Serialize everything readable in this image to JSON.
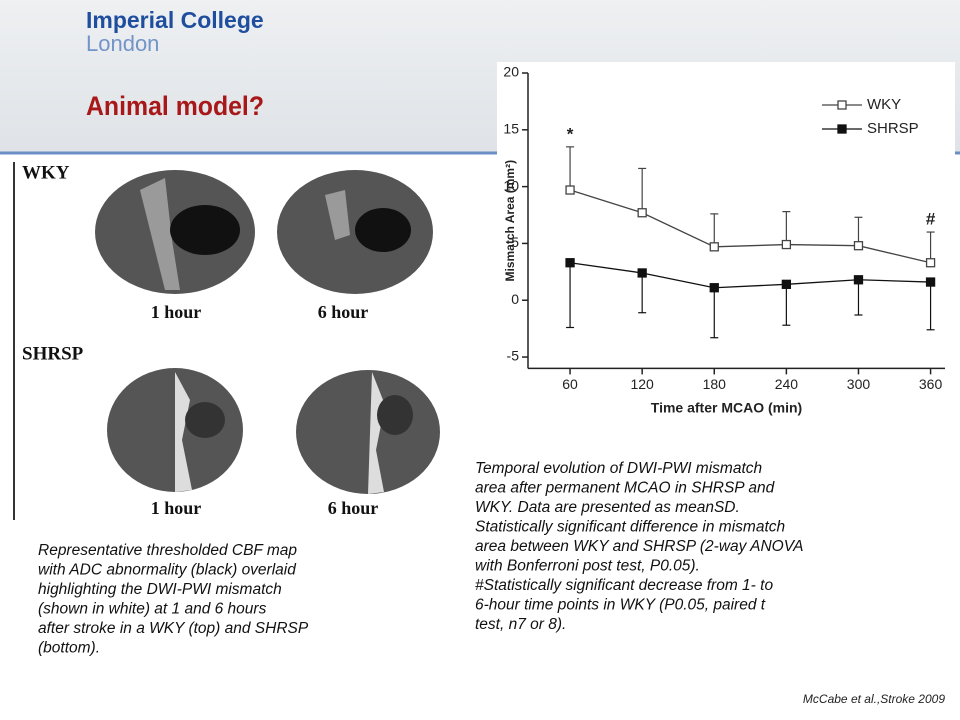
{
  "header": {
    "title": "Imperial College",
    "subtitle": "London",
    "heading": "Animal model?"
  },
  "figure": {
    "row_labels": [
      "WKY",
      "SHRSP"
    ],
    "time_labels": [
      "1 hour",
      "6 hour",
      "1 hour",
      "6 hour"
    ],
    "caption_lines": [
      "Representative thresholded CBF map",
      "with ADC abnormality (black) overlaid",
      "highlighting the DWI-PWI mismatch",
      "(shown in white) at 1 and 6 hours",
      "after stroke in a WKY (top) and SHRSP",
      "(bottom)."
    ]
  },
  "chart_caption_lines": [
    "Temporal evolution of DWI-PWI mismatch",
    "area after permanent MCAO in SHRSP and",
    "WKY. Data are presented as meanSD.",
    "Statistically significant difference in mismatch",
    "area between WKY and SHRSP (2-way ANOVA",
    "with Bonferroni post test, P0.05).",
    "#Statistically significant decrease from 1- to",
    "6-hour time points in WKY (P0.05, paired t",
    "test, n7 or 8)."
  ],
  "citation": "McCabe et al.,Stroke 2009",
  "chart_data": {
    "type": "line",
    "x_label": "Time after MCAO (min)",
    "y_label": "Mismatch Area (mm²)",
    "x": [
      60,
      120,
      180,
      240,
      300,
      360
    ],
    "xlim": [
      25,
      372
    ],
    "xticks": [
      60,
      120,
      180,
      240,
      300,
      360
    ],
    "ylim": [
      -6,
      20
    ],
    "yticks": [
      -5,
      0,
      5,
      10,
      15,
      20
    ],
    "legend": "upper right",
    "series": [
      {
        "name": "WKY",
        "color": "#444444",
        "marker": "open-square",
        "error_side": "up",
        "values": [
          9.7,
          7.7,
          4.7,
          4.9,
          4.8,
          3.3
        ],
        "errors": [
          3.8,
          3.9,
          2.9,
          2.9,
          2.5,
          2.7
        ]
      },
      {
        "name": "SHRSP",
        "color": "#111111",
        "marker": "filled-square",
        "error_side": "down",
        "values": [
          3.3,
          2.4,
          1.1,
          1.4,
          1.8,
          1.6
        ],
        "errors": [
          5.7,
          3.5,
          4.4,
          3.6,
          3.1,
          4.2
        ]
      }
    ],
    "annotations": [
      {
        "text": "*",
        "x": 60
      },
      {
        "text": "#",
        "x": 360
      }
    ]
  }
}
